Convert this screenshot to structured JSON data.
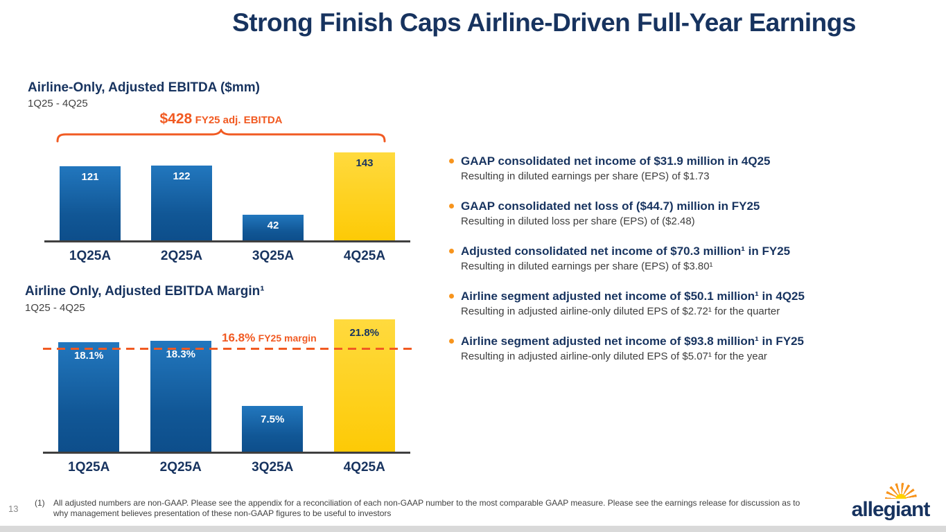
{
  "slide": {
    "title": "Strong Finish Caps Airline-Driven Full-Year Earnings",
    "page_number": "13",
    "logo_text": "allegiant"
  },
  "colors": {
    "navy": "#17335f",
    "bar_blue": "#1266ad",
    "bar_yellow": "#fdca06",
    "accent_orange": "#f15a22",
    "bullet_orange": "#f7941d"
  },
  "chart_data": [
    {
      "type": "bar",
      "title": "Airline-Only, Adjusted EBITDA ($mm)",
      "subtitle": "1Q25 - 4Q25",
      "categories": [
        "1Q25A",
        "2Q25A",
        "3Q25A",
        "4Q25A"
      ],
      "values": [
        121,
        122,
        42,
        143
      ],
      "value_labels": [
        "121",
        "122",
        "42",
        "143"
      ],
      "bar_colors": [
        "blue",
        "blue",
        "blue",
        "yellow"
      ],
      "annotation": {
        "value": "$428",
        "label": "FY25 adj. EBITDA"
      },
      "xlabel": "",
      "ylabel": "",
      "ylim": [
        0,
        160
      ],
      "grid": false,
      "legend": false
    },
    {
      "type": "bar",
      "title": "Airline Only, Adjusted EBITDA Margin¹",
      "subtitle": "1Q25 - 4Q25",
      "categories": [
        "1Q25A",
        "2Q25A",
        "3Q25A",
        "4Q25A"
      ],
      "values": [
        18.1,
        18.3,
        7.5,
        21.8
      ],
      "value_labels": [
        "18.1%",
        "18.3%",
        "7.5%",
        "21.8%"
      ],
      "bar_colors": [
        "blue",
        "blue",
        "blue",
        "yellow"
      ],
      "reference_line": {
        "value": 16.8,
        "label_value": "16.8%",
        "label_text": "FY25 margin"
      },
      "xlabel": "",
      "ylabel": "",
      "ylim": [
        0,
        22.5
      ],
      "grid": false,
      "legend": false
    }
  ],
  "bullets": [
    {
      "main": "GAAP consolidated net income of $31.9 million in 4Q25",
      "sub": "Resulting in diluted earnings per share (EPS) of $1.73"
    },
    {
      "main": "GAAP consolidated net loss of ($44.7) million in FY25",
      "sub": "Resulting in diluted loss per share (EPS) of ($2.48)"
    },
    {
      "main": "Adjusted consolidated net income of $70.3 million¹ in FY25",
      "sub": "Resulting in diluted earnings per share (EPS) of $3.80¹"
    },
    {
      "main": "Airline segment adjusted net income of $50.1 million¹ in 4Q25",
      "sub": "Resulting in adjusted airline-only diluted EPS of $2.72¹ for the quarter"
    },
    {
      "main": "Airline segment adjusted net income of $93.8 million¹ in FY25",
      "sub": "Resulting in adjusted airline-only diluted EPS of $5.07¹ for the year"
    }
  ],
  "footnote": {
    "marker": "(1)",
    "text": "All adjusted numbers are non-GAAP. Please see the appendix for a reconciliation of each non-GAAP number to the most comparable GAAP measure. Please see the earnings release for discussion as to why management believes presentation of these non-GAAP figures to be useful to investors"
  }
}
